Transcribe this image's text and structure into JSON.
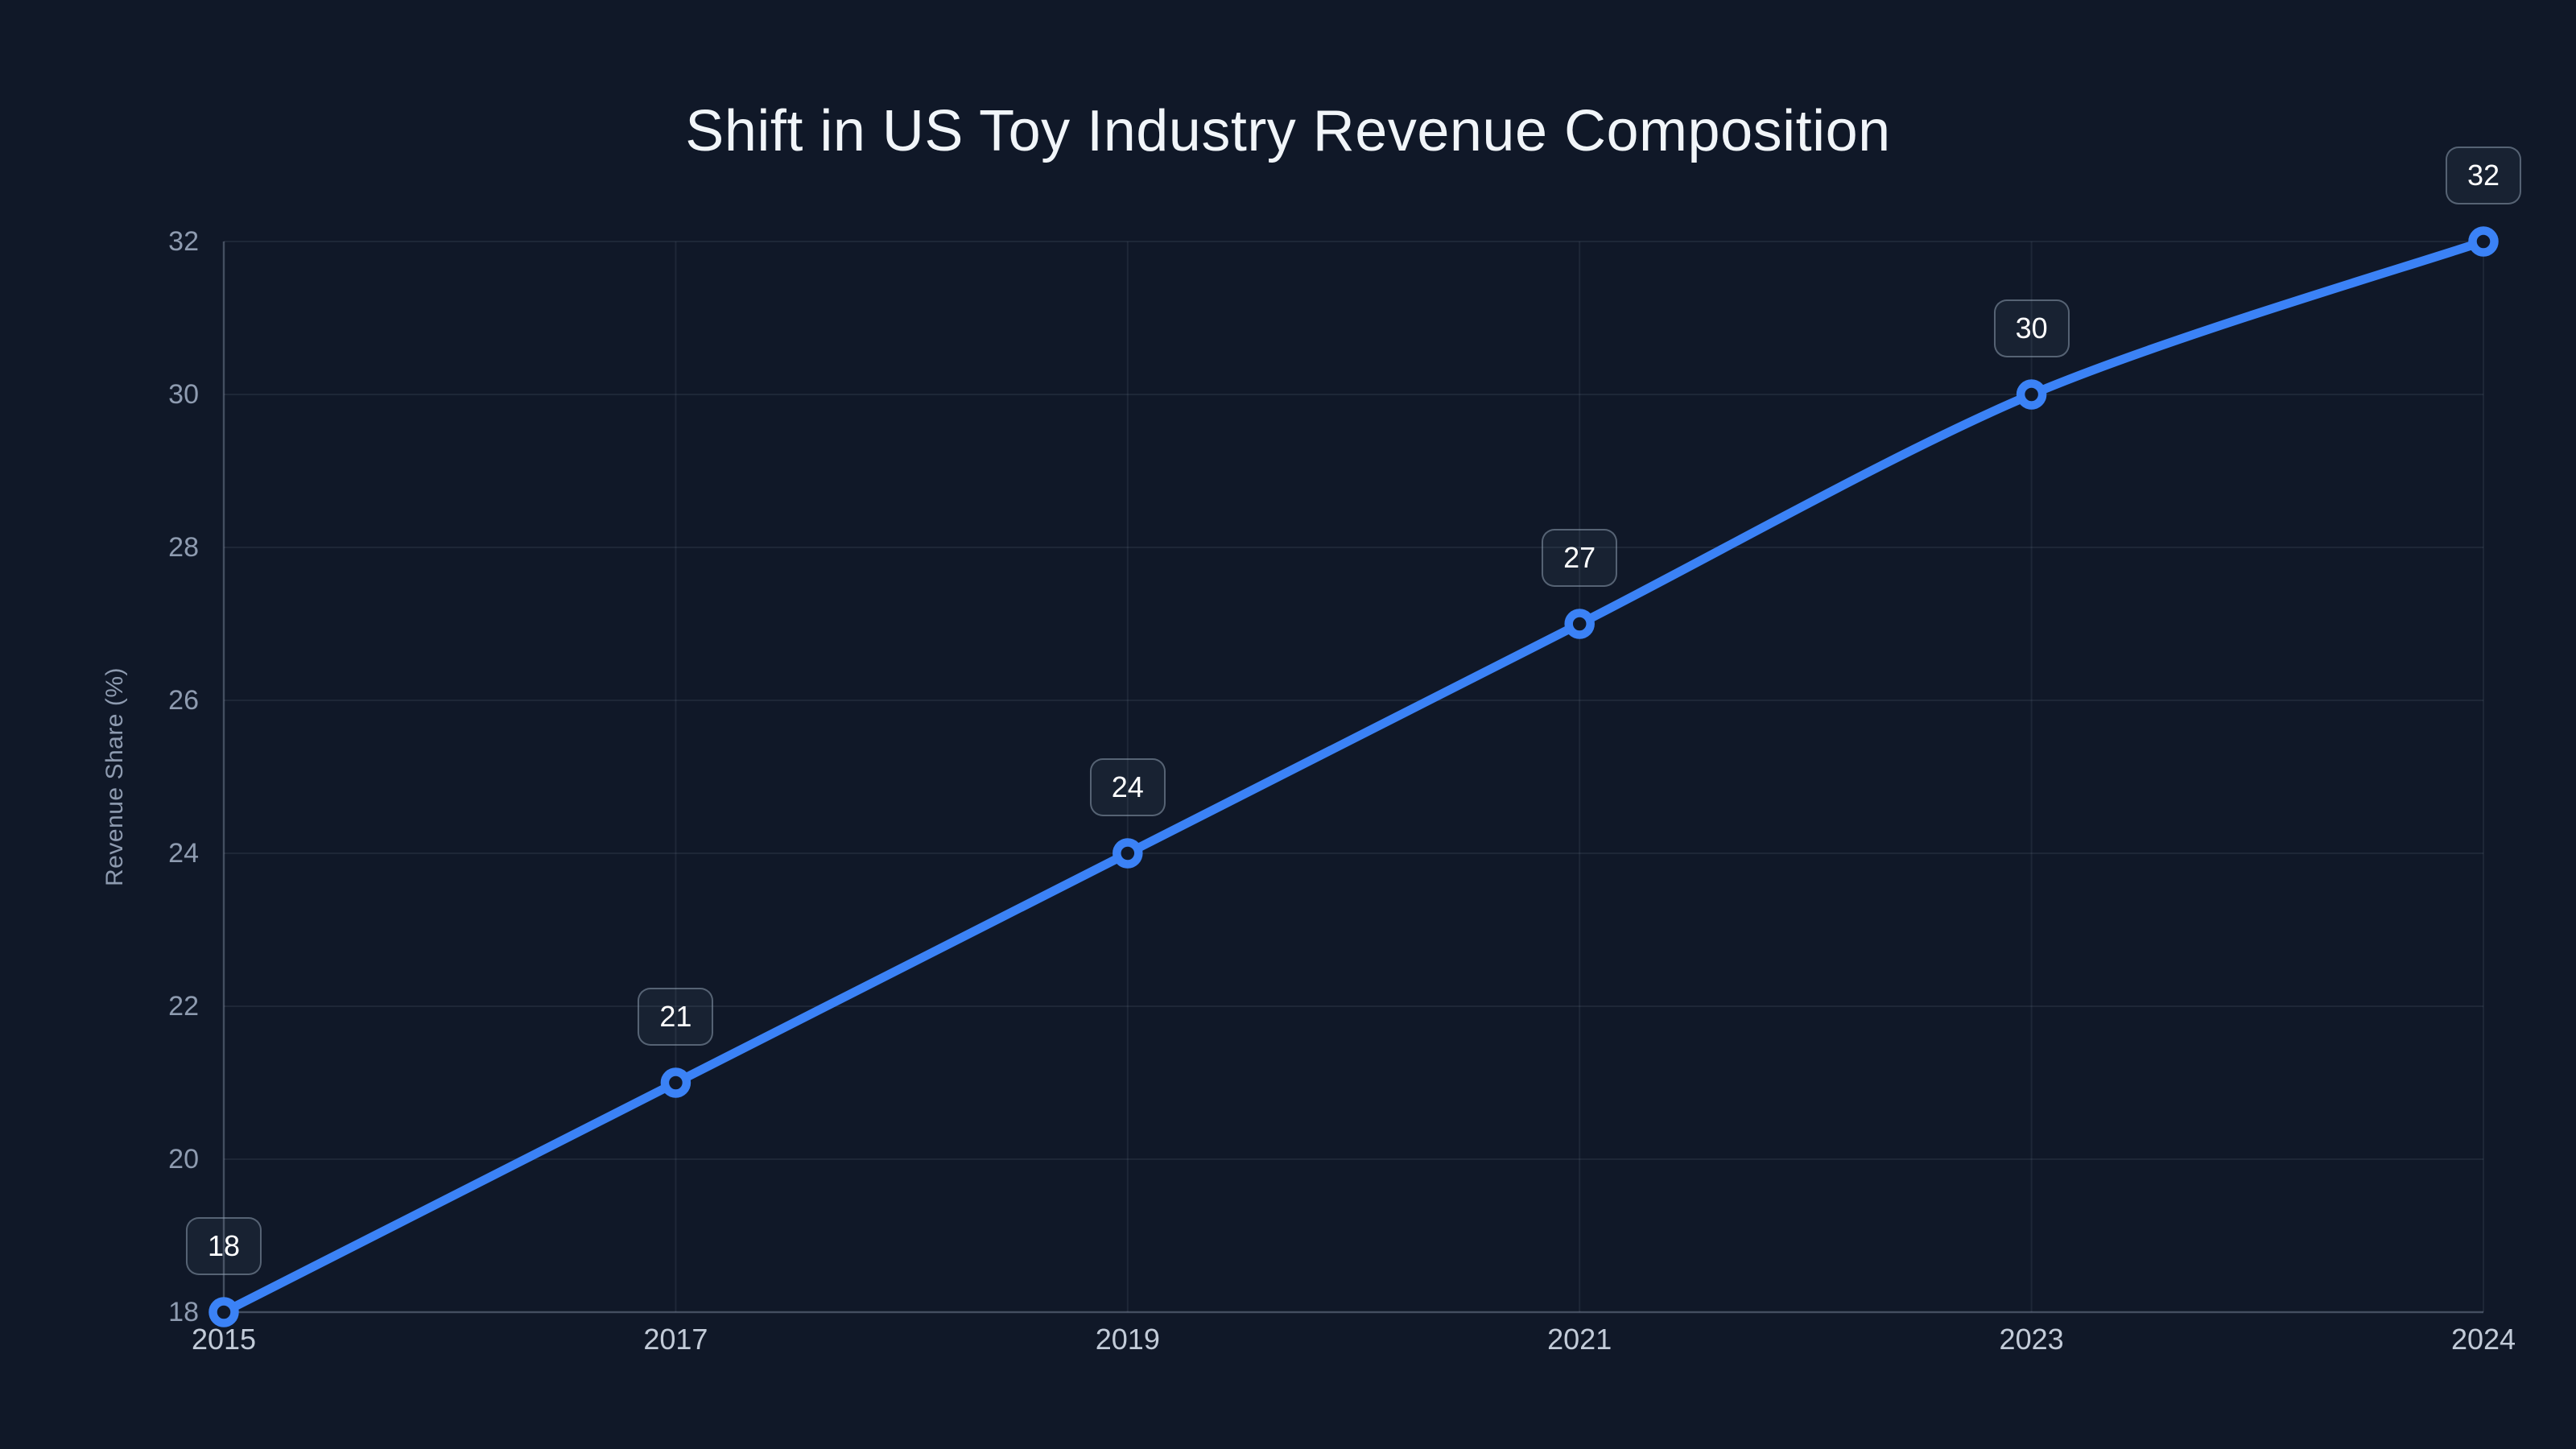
{
  "chart_data": {
    "type": "line",
    "title": "Shift in US Toy Industry Revenue Composition",
    "ylabel": "Revenue Share (%)",
    "xlabel": "",
    "categories": [
      "2015",
      "2017",
      "2019",
      "2021",
      "2023",
      "2024"
    ],
    "series": [
      {
        "name": "Revenue Share",
        "values": [
          18,
          21,
          24,
          27,
          30,
          32
        ]
      }
    ],
    "point_labels": [
      "18",
      "21",
      "24",
      "27",
      "30",
      "32"
    ],
    "ylim": [
      18,
      32
    ],
    "yticks": [
      18,
      20,
      22,
      24,
      26,
      28,
      30,
      32
    ],
    "grid": "on",
    "legend": "none",
    "marker_style": "hollow-circle",
    "colors": {
      "background": "#101828",
      "line": "#3b82f6",
      "marker_ring": "#3b82f6",
      "marker_fill": "#101828",
      "grid": "rgba(148,163,184,0.11)",
      "axis": "rgba(148,163,184,0.32)",
      "title_text": "#f1f5f9",
      "ytick_text": "#8e9bb0",
      "xtick_text": "#c2cbd8",
      "badge_text": "#ffffff",
      "badge_border": "rgba(148,163,184,0.5)",
      "badge_bg": "rgba(148,163,184,0.07)"
    }
  }
}
